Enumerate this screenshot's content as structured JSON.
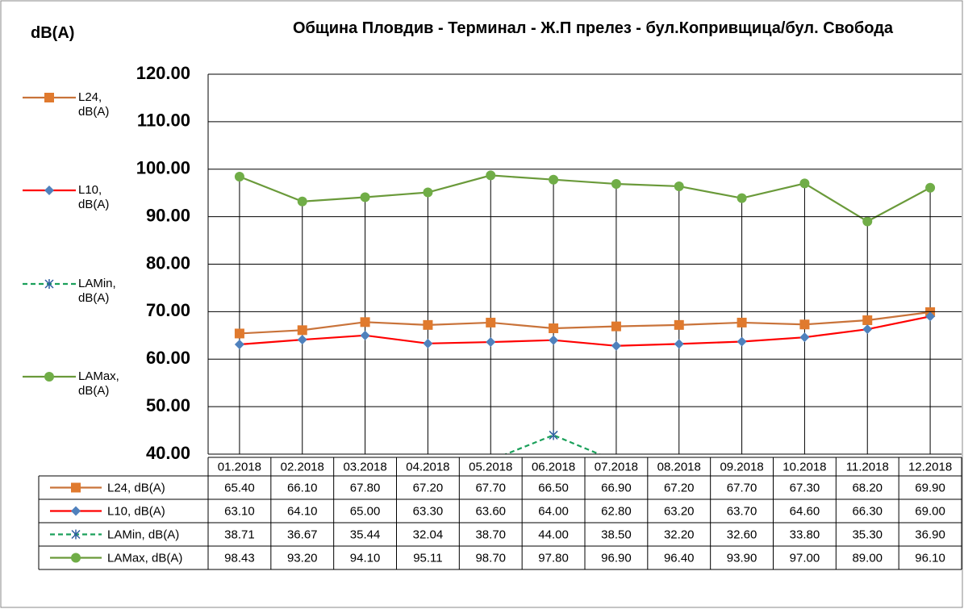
{
  "chart_data": {
    "type": "line",
    "title": "Община Пловдив  - Терминал -  Ж.П прелез - бул.Копривщица/бул. Свобода",
    "y_label": "dB(A)",
    "categories": [
      "01.2018",
      "02.2018",
      "03.2018",
      "04.2018",
      "05.2018",
      "06.2018",
      "07.2018",
      "08.2018",
      "09.2018",
      "10.2018",
      "11.2018",
      "12.2018"
    ],
    "ylim": [
      40,
      120
    ],
    "yticks": [
      {
        "value": 40,
        "label": "40.00"
      },
      {
        "value": 50,
        "label": "50.00"
      },
      {
        "value": 60,
        "label": "60.00"
      },
      {
        "value": 70,
        "label": "70.00"
      },
      {
        "value": 80,
        "label": "80.00"
      },
      {
        "value": 90,
        "label": "90.00"
      },
      {
        "value": 100,
        "label": "100.00"
      },
      {
        "value": 110,
        "label": "110.00"
      },
      {
        "value": 120,
        "label": "120.00"
      }
    ],
    "grid": true,
    "high_low_lines": true,
    "series": [
      {
        "name": "L24, dB(A)",
        "color": "#c9733a",
        "marker_color": "#e07a2e",
        "marker": "square",
        "dash": false,
        "values": [
          65.4,
          66.1,
          67.8,
          67.2,
          67.7,
          66.5,
          66.9,
          67.2,
          67.7,
          67.3,
          68.2,
          69.9
        ],
        "value_labels": [
          "65.40",
          "66.10",
          "67.80",
          "67.20",
          "67.70",
          "66.50",
          "66.90",
          "67.20",
          "67.70",
          "67.30",
          "68.20",
          "69.90"
        ]
      },
      {
        "name": "L10, dB(A)",
        "color": "#ff0000",
        "marker_color": "#4f81bd",
        "marker": "diamond",
        "dash": false,
        "values": [
          63.1,
          64.1,
          65.0,
          63.3,
          63.6,
          64.0,
          62.8,
          63.2,
          63.7,
          64.6,
          66.3,
          69.0
        ],
        "value_labels": [
          "63.10",
          "64.10",
          "65.00",
          "63.30",
          "63.60",
          "64.00",
          "62.80",
          "63.20",
          "63.70",
          "64.60",
          "66.30",
          "69.00"
        ]
      },
      {
        "name": "LAMin, dB(A)",
        "color": "#1aa05a",
        "marker_color": "#2e5fa0",
        "marker": "star",
        "dash": true,
        "values": [
          38.71,
          36.67,
          35.44,
          32.04,
          38.7,
          44.0,
          38.5,
          32.2,
          32.6,
          33.8,
          35.3,
          36.9
        ],
        "value_labels": [
          "38.71",
          "36.67",
          "35.44",
          "32.04",
          "38.70",
          "44.00",
          "38.50",
          "32.20",
          "32.60",
          "33.80",
          "35.30",
          "36.90"
        ]
      },
      {
        "name": "LAMax, dB(A)",
        "color": "#6a9a3a",
        "marker_color": "#70ad47",
        "marker": "circle",
        "dash": false,
        "values": [
          98.43,
          93.2,
          94.1,
          95.11,
          98.7,
          97.8,
          96.9,
          96.4,
          93.9,
          97.0,
          89.0,
          96.1
        ],
        "value_labels": [
          "98.43",
          "93.20",
          "94.10",
          "95.11",
          "98.70",
          "97.80",
          "96.90",
          "96.40",
          "93.90",
          "97.00",
          "89.00",
          "96.10"
        ]
      }
    ]
  }
}
